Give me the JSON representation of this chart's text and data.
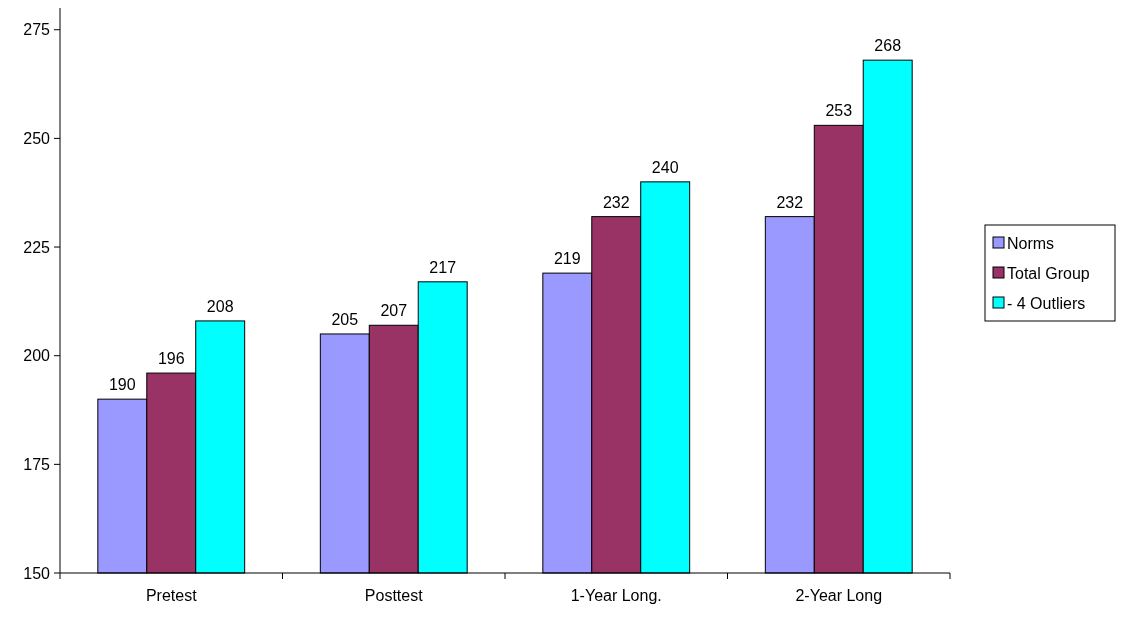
{
  "chart_data": {
    "type": "bar",
    "categories": [
      "Pretest",
      "Posttest",
      "1-Year Long.",
      "2-Year Long"
    ],
    "series": [
      {
        "name": "Norms",
        "color": "#9999ff",
        "values": [
          190,
          205,
          219,
          232
        ]
      },
      {
        "name": "Total Group",
        "color": "#993366",
        "values": [
          196,
          207,
          232,
          253
        ]
      },
      {
        "name": "- 4 Outliers",
        "color": "#00ffff",
        "values": [
          208,
          217,
          240,
          268
        ]
      }
    ],
    "ylim": [
      150,
      280
    ],
    "yticks": [
      150,
      175,
      200,
      225,
      250,
      275
    ],
    "data_labels": true,
    "legend": "right",
    "grid": false
  }
}
